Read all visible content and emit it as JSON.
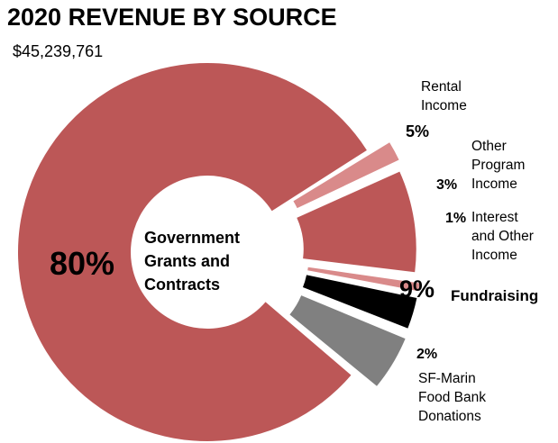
{
  "title": "2020 REVENUE BY SOURCE",
  "total": "$45,239,761",
  "chart_data": {
    "type": "pie",
    "title": "2020 REVENUE BY SOURCE",
    "subtitle": "$45,239,761",
    "unit": "%",
    "center_label": [
      "Government",
      "Grants and",
      "Contracts"
    ],
    "slices": [
      {
        "label": [
          "Government",
          "Grants and",
          "Contracts"
        ],
        "pct_label": "80%",
        "value": 80,
        "color": "#BC5757"
      },
      {
        "label": [
          "SF-Marin",
          "Food Bank",
          "Donations"
        ],
        "pct_label": "2%",
        "value": 2,
        "color": "#D98A8A"
      },
      {
        "label": [
          "Fundraising"
        ],
        "pct_label": "9%",
        "value": 9,
        "color": "#BC5757"
      },
      {
        "label": [
          "Interest",
          "and Other",
          "Income"
        ],
        "pct_label": "1%",
        "value": 1,
        "color": "#D98A8A"
      },
      {
        "label": [
          "Other",
          "Program",
          "Income"
        ],
        "pct_label": "3%",
        "value": 3,
        "color": "#000000"
      },
      {
        "label": [
          "Rental",
          "Income"
        ],
        "pct_label": "5%",
        "value": 5,
        "color": "#808080"
      }
    ]
  }
}
